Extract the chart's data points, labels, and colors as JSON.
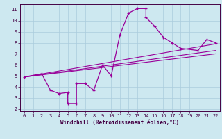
{
  "title": "",
  "xlabel": "Windchill (Refroidissement éolien,°C)",
  "ylabel": "",
  "bg_color": "#cde8f0",
  "line_color": "#990099",
  "grid_color": "#aaccdd",
  "xlim": [
    -0.5,
    22.5
  ],
  "ylim": [
    1.8,
    11.5
  ],
  "xticks": [
    0,
    1,
    2,
    3,
    4,
    5,
    6,
    7,
    8,
    9,
    10,
    11,
    12,
    13,
    14,
    15,
    16,
    17,
    18,
    19,
    20,
    21,
    22
  ],
  "yticks": [
    2,
    3,
    4,
    5,
    6,
    7,
    8,
    9,
    10,
    11
  ],
  "main_x": [
    0,
    2,
    3,
    4,
    5,
    5,
    6,
    6,
    7,
    8,
    9,
    10,
    11,
    12,
    13,
    14,
    14,
    15,
    16,
    17,
    18,
    20,
    21,
    22
  ],
  "main_y": [
    4.9,
    5.2,
    3.7,
    3.4,
    3.5,
    2.5,
    2.5,
    4.3,
    4.3,
    3.7,
    6.0,
    5.0,
    8.7,
    10.7,
    11.1,
    11.1,
    10.3,
    9.5,
    8.5,
    8.0,
    7.5,
    7.3,
    8.3,
    8.0
  ],
  "line1_x": [
    0,
    22
  ],
  "line1_y": [
    4.9,
    7.3
  ],
  "line2_x": [
    0,
    22
  ],
  "line2_y": [
    4.9,
    7.0
  ],
  "line3_x": [
    0,
    22
  ],
  "line3_y": [
    4.9,
    7.9
  ]
}
